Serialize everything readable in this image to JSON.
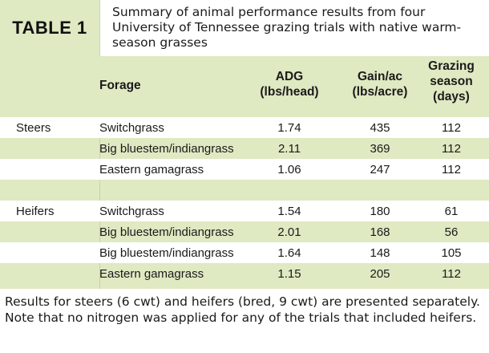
{
  "table": {
    "tag": "TABLE 1",
    "caption": "Summary of animal performance results from four University of Tennessee grazing trials with native warm-season grasses",
    "headers": {
      "forage": "Forage",
      "adg_line1": "ADG",
      "adg_line2": "(lbs/head)",
      "gain_line1": "Gain/ac",
      "gain_line2": "(lbs/acre)",
      "season_line1": "Grazing",
      "season_line2": "season",
      "season_line3": "(days)"
    },
    "rows": [
      {
        "group": "Steers",
        "forage": "Switchgrass",
        "adg": "1.74",
        "gain": "435",
        "season": "112"
      },
      {
        "group": "",
        "forage": "Big bluestem/indiangrass",
        "adg": "2.11",
        "gain": "369",
        "season": "112"
      },
      {
        "group": "",
        "forage": "Eastern gamagrass",
        "adg": "1.06",
        "gain": "247",
        "season": "112"
      },
      {
        "group": "",
        "forage": "",
        "adg": "",
        "gain": "",
        "season": ""
      },
      {
        "group": "Heifers",
        "forage": "Switchgrass",
        "adg": "1.54",
        "gain": "180",
        "season": "61"
      },
      {
        "group": "",
        "forage": "Big bluestem/indiangrass",
        "adg": "2.01",
        "gain": "168",
        "season": "56"
      },
      {
        "group": "",
        "forage": "Big bluestem/indiangrass",
        "adg": "1.64",
        "gain": "148",
        "season": "105"
      },
      {
        "group": "",
        "forage": "Eastern gamagrass",
        "adg": "1.15",
        "gain": "205",
        "season": "112"
      }
    ],
    "footnote": "Results for steers (6 cwt) and heifers (bred, 9 cwt) are presented separately. Note that no nitrogen was applied for any of the trials that included heifers."
  },
  "colors": {
    "band_green": "#dfe9c2",
    "row_white": "#ffffff",
    "text": "#1a1a1a"
  }
}
